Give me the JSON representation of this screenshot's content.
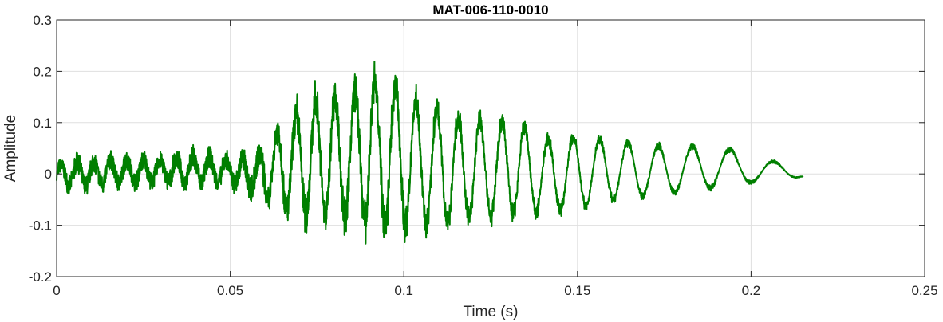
{
  "chart_data": {
    "type": "line",
    "title": "MAT-006-110-0010",
    "xlabel": "Time (s)",
    "ylabel": "Amplitude",
    "xlim": [
      0,
      0.25
    ],
    "ylim": [
      -0.2,
      0.3
    ],
    "xticks": [
      0,
      0.05,
      0.1,
      0.15,
      0.2,
      0.25
    ],
    "xtick_labels": [
      "0",
      "0.05",
      "0.1",
      "0.15",
      "0.2",
      "0.25"
    ],
    "yticks": [
      -0.2,
      -0.1,
      0,
      0.1,
      0.2,
      0.3
    ],
    "ytick_labels": [
      "-0.2",
      "-0.1",
      "0",
      "0.1",
      "0.2",
      "0.3"
    ],
    "grid": true,
    "line_color": "#007f00",
    "series": [
      {
        "x": [
          0.0,
          0.005,
          0.01,
          0.015,
          0.02,
          0.025,
          0.03,
          0.035,
          0.04,
          0.045,
          0.05,
          0.055,
          0.06,
          0.065,
          0.07,
          0.075,
          0.08,
          0.085,
          0.09,
          0.095,
          0.1,
          0.105,
          0.11,
          0.115,
          0.12,
          0.125,
          0.13,
          0.135,
          0.14,
          0.145,
          0.15,
          0.155,
          0.16,
          0.165,
          0.17,
          0.175,
          0.18,
          0.185,
          0.19,
          0.195,
          0.2,
          0.205,
          0.21,
          0.215
        ],
        "envelope_upper": [
          0.03,
          0.05,
          0.048,
          0.05,
          0.05,
          0.05,
          0.05,
          0.055,
          0.06,
          0.055,
          0.05,
          0.06,
          0.08,
          0.14,
          0.17,
          0.19,
          0.2,
          0.21,
          0.24,
          0.225,
          0.215,
          0.175,
          0.16,
          0.14,
          0.135,
          0.13,
          0.125,
          0.11,
          0.09,
          0.08,
          0.09,
          0.08,
          0.08,
          0.07,
          0.07,
          0.06,
          0.06,
          0.06,
          0.06,
          0.05,
          0.04,
          0.03,
          0.02,
          0.005
        ],
        "envelope_lower": [
          -0.03,
          -0.05,
          -0.05,
          -0.04,
          -0.04,
          -0.04,
          -0.035,
          -0.04,
          -0.04,
          -0.04,
          -0.04,
          -0.06,
          -0.07,
          -0.11,
          -0.125,
          -0.13,
          -0.135,
          -0.14,
          -0.145,
          -0.15,
          -0.145,
          -0.13,
          -0.13,
          -0.125,
          -0.115,
          -0.11,
          -0.1,
          -0.095,
          -0.09,
          -0.085,
          -0.08,
          -0.07,
          -0.06,
          -0.06,
          -0.05,
          -0.05,
          -0.04,
          -0.04,
          -0.03,
          -0.03,
          -0.02,
          -0.02,
          -0.015,
          -0.005
        ]
      }
    ]
  }
}
